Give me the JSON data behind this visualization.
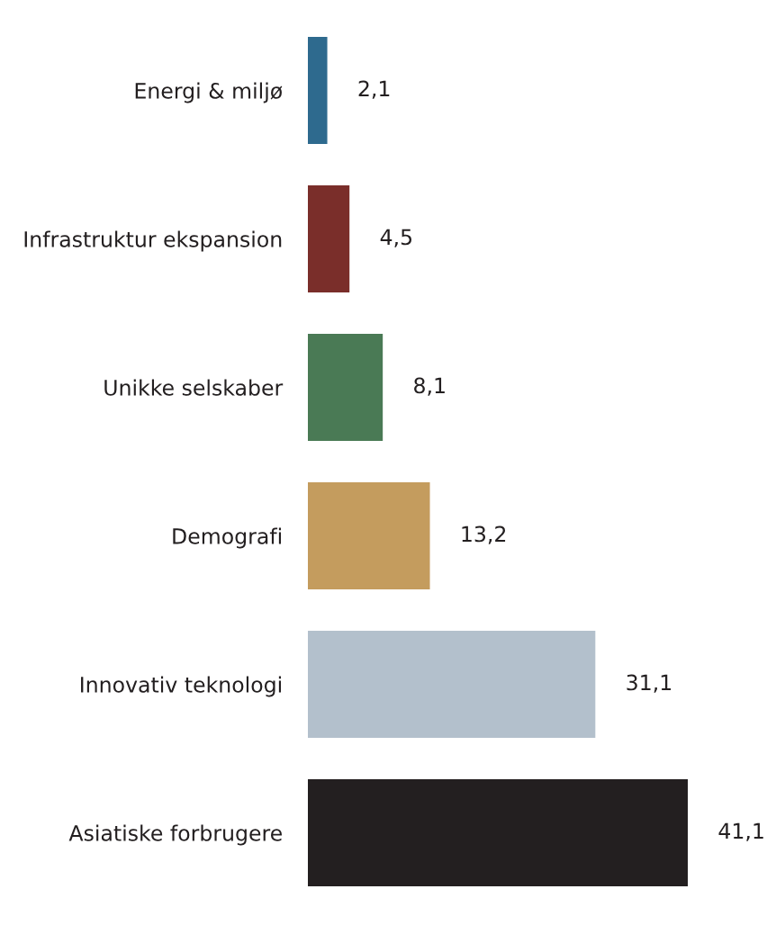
{
  "chart_data": {
    "type": "bar",
    "orientation": "horizontal",
    "categories": [
      "Energi & miljø",
      "Infrastruktur ekspansion",
      "Unikke selskaber",
      "Demografi",
      "Innovativ teknologi",
      "Asiatiske forbrugere"
    ],
    "values": [
      2.1,
      4.5,
      8.1,
      13.2,
      31.1,
      41.1
    ],
    "colors": [
      "#2e6a8e",
      "#7a2e2a",
      "#4a7a55",
      "#c49c5e",
      "#b3c0cc",
      "#231f20"
    ],
    "value_labels": [
      "2,1",
      "4,5",
      "8,1",
      "13,2",
      "31,1",
      "41,1"
    ],
    "grid": false,
    "legend": false
  }
}
